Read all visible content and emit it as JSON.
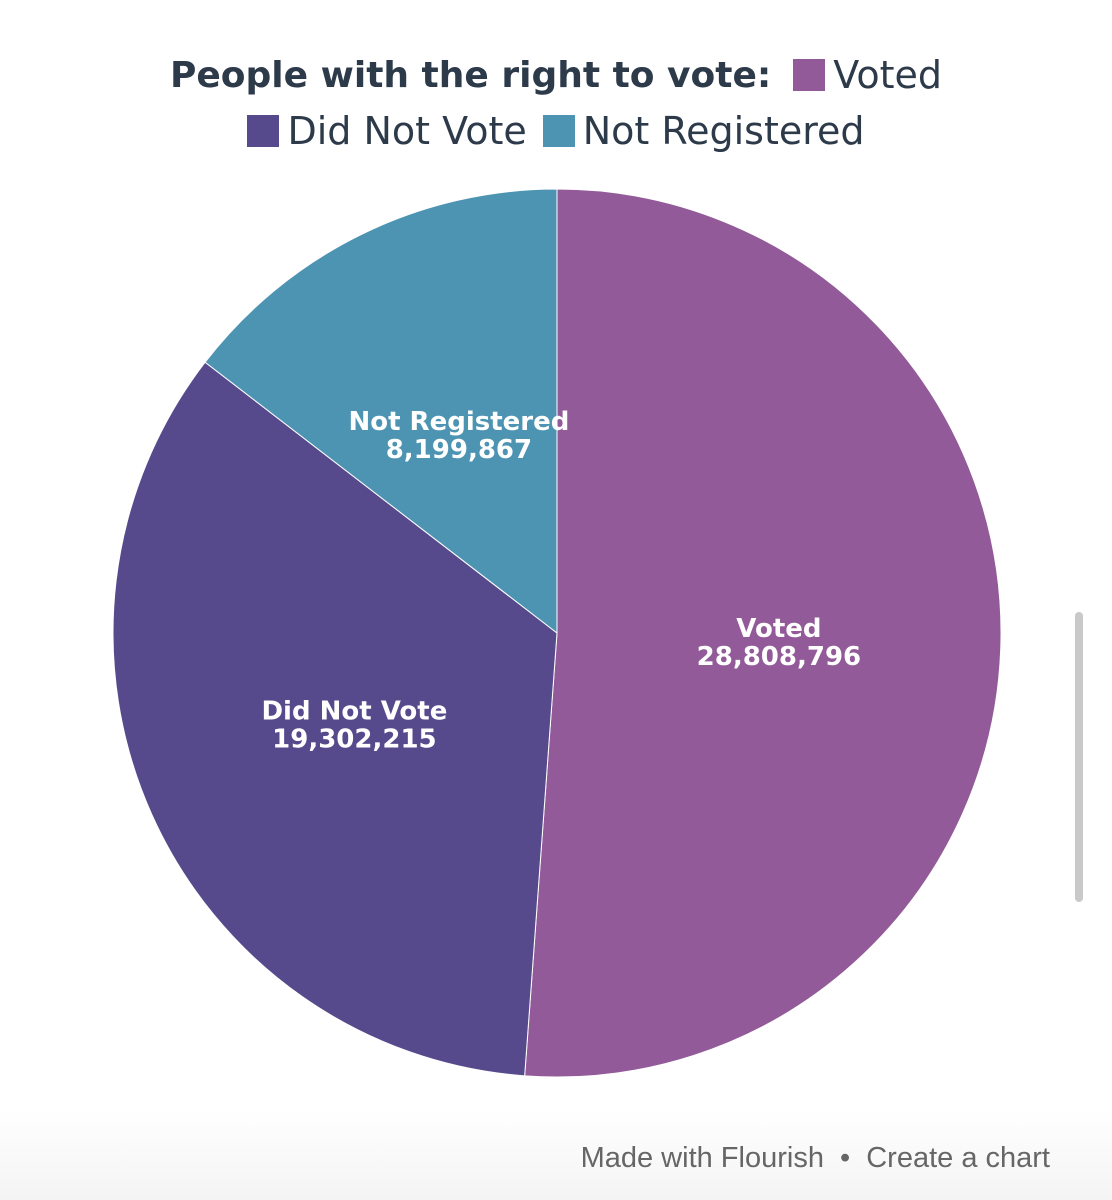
{
  "legend": {
    "title": "People with the right to vote:",
    "items": [
      {
        "label": "Voted",
        "color": "#925a98"
      },
      {
        "label": "Did Not Vote",
        "color": "#564a8c"
      },
      {
        "label": "Not Registered",
        "color": "#4d94b3"
      }
    ]
  },
  "chart_data": {
    "type": "pie",
    "title": "",
    "legend_title": "People with the right to vote:",
    "legend_position": "top",
    "slices": [
      {
        "label": "Voted",
        "value": 28808796,
        "display": "28,808,796",
        "color": "#925a98"
      },
      {
        "label": "Did Not Vote",
        "value": 19302215,
        "display": "19,302,215",
        "color": "#564a8c"
      },
      {
        "label": "Not Registered",
        "value": 8199867,
        "display": "8,199,867",
        "color": "#4d94b3"
      }
    ]
  },
  "footer": {
    "made_with": "Made with Flourish",
    "separator": "•",
    "create": "Create a chart"
  }
}
